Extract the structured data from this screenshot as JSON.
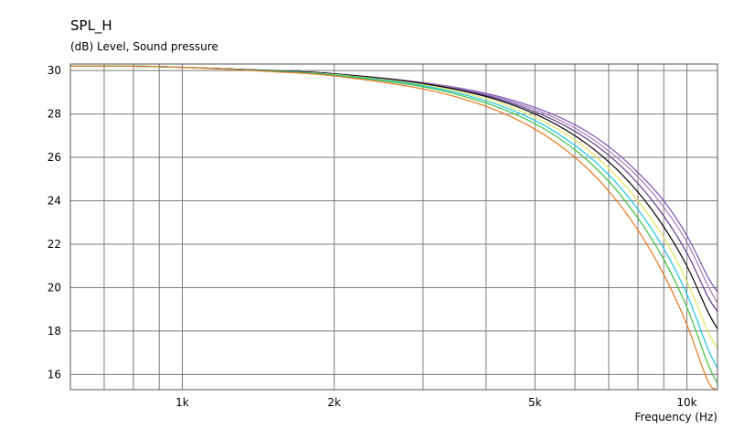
{
  "chart_data": {
    "type": "line",
    "title": "SPL_H",
    "ylabel": "(dB)  Level, Sound pressure",
    "xlabel": "Frequency  (Hz)",
    "xscale": "log",
    "xlim": [
      600,
      11500
    ],
    "ylim": [
      15.3,
      30.3
    ],
    "x_ticks": [
      {
        "value": 1000,
        "label": "1k"
      },
      {
        "value": 2000,
        "label": "2k"
      },
      {
        "value": 5000,
        "label": "5k"
      },
      {
        "value": 10000,
        "label": "10k"
      }
    ],
    "y_ticks": [
      {
        "value": 30,
        "label": "30"
      },
      {
        "value": 28,
        "label": "28"
      },
      {
        "value": 26,
        "label": "26"
      },
      {
        "value": 24,
        "label": "24"
      },
      {
        "value": 22,
        "label": "22"
      },
      {
        "value": 20,
        "label": "20"
      },
      {
        "value": 18,
        "label": "18"
      },
      {
        "value": 16,
        "label": "16"
      }
    ],
    "grid": true,
    "legend": "none",
    "x": [
      600,
      800,
      1000,
      1500,
      2000,
      3000,
      4000,
      5000,
      6000,
      7000,
      8000,
      9000,
      10000,
      11000,
      11500
    ],
    "series": [
      {
        "color": "#7a4fb5",
        "values": [
          30.2,
          30.2,
          30.15,
          30.0,
          29.85,
          29.45,
          28.95,
          28.3,
          27.5,
          26.5,
          25.3,
          24.0,
          22.4,
          20.5,
          19.8
        ]
      },
      {
        "color": "#a07ab8",
        "values": [
          30.2,
          30.2,
          30.15,
          30.0,
          29.85,
          29.45,
          28.9,
          28.2,
          27.35,
          26.3,
          25.1,
          23.7,
          22.1,
          20.1,
          19.3
        ]
      },
      {
        "color": "#5b3a8a",
        "values": [
          30.2,
          30.2,
          30.15,
          30.0,
          29.85,
          29.4,
          28.85,
          28.1,
          27.2,
          26.1,
          24.8,
          23.3,
          21.6,
          19.6,
          18.9
        ]
      },
      {
        "color": "#000000",
        "values": [
          30.2,
          30.2,
          30.15,
          30.0,
          29.85,
          29.4,
          28.8,
          28.0,
          27.0,
          25.8,
          24.4,
          22.8,
          21.0,
          18.9,
          18.1
        ]
      },
      {
        "color": "#e6e65a",
        "values": [
          30.2,
          30.2,
          30.15,
          29.98,
          29.82,
          29.35,
          28.7,
          27.85,
          26.8,
          25.5,
          24.0,
          22.3,
          20.3,
          18.0,
          17.2
        ]
      },
      {
        "color": "#1ec6e6",
        "values": [
          30.2,
          30.2,
          30.15,
          29.98,
          29.8,
          29.3,
          28.6,
          27.7,
          26.55,
          25.2,
          23.6,
          21.8,
          19.7,
          17.2,
          16.3
        ]
      },
      {
        "color": "#3fbf3f",
        "values": [
          30.2,
          30.2,
          30.15,
          29.97,
          29.78,
          29.25,
          28.5,
          27.55,
          26.35,
          24.9,
          23.2,
          21.3,
          19.1,
          16.5,
          15.6
        ]
      },
      {
        "color": "#e87820",
        "values": [
          30.2,
          30.2,
          30.15,
          29.95,
          29.75,
          29.15,
          28.35,
          27.3,
          26.0,
          24.45,
          22.65,
          20.6,
          18.3,
          15.7,
          15.3
        ]
      }
    ]
  }
}
